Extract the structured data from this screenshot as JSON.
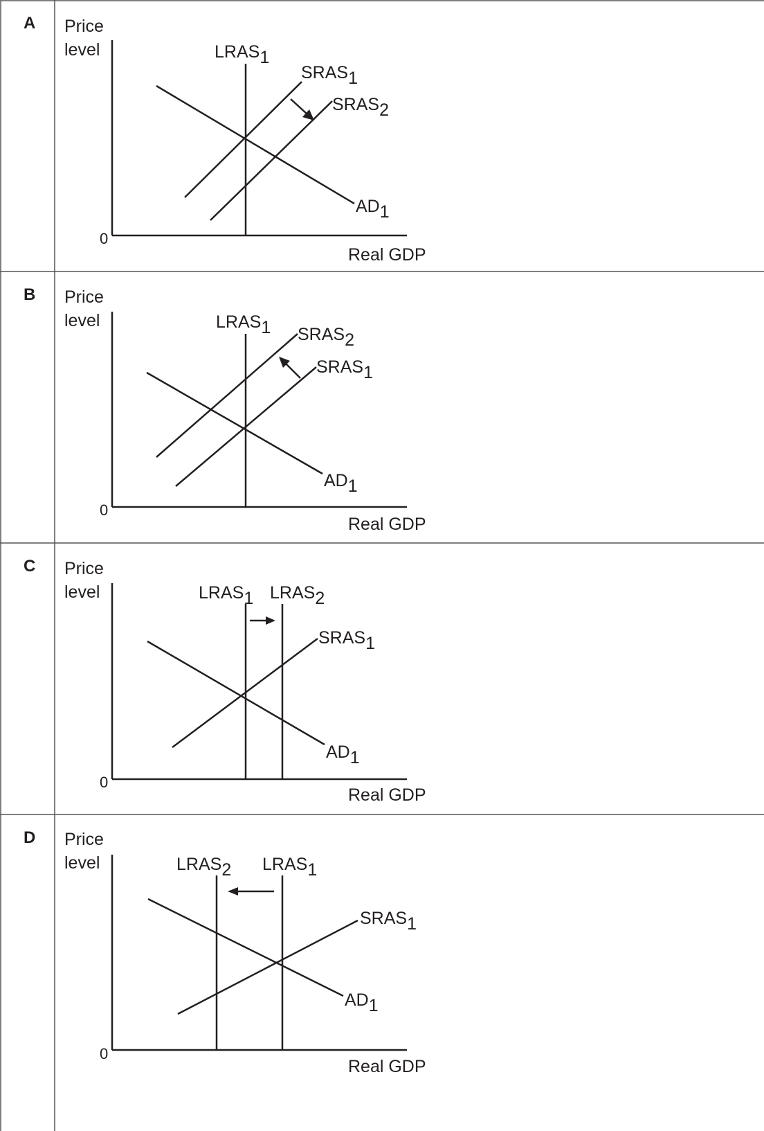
{
  "colors": {
    "ink": "#231f20",
    "border": "#555555",
    "background": "#ffffff"
  },
  "axis_labels": {
    "y_line1": "Price",
    "y_line2": "level",
    "x": "Real GDP",
    "origin": "0"
  },
  "panels": [
    {
      "letter": "A",
      "curves": [
        {
          "key": "lras1",
          "base": "LRAS",
          "sub": "1"
        },
        {
          "key": "sras1",
          "base": "SRAS",
          "sub": "1"
        },
        {
          "key": "sras2",
          "base": "SRAS",
          "sub": "2"
        },
        {
          "key": "ad1",
          "base": "AD",
          "sub": "1"
        }
      ],
      "shift": "SRAS shifts right (SRAS1 to SRAS2)"
    },
    {
      "letter": "B",
      "curves": [
        {
          "key": "lras1",
          "base": "LRAS",
          "sub": "1"
        },
        {
          "key": "sras2",
          "base": "SRAS",
          "sub": "2"
        },
        {
          "key": "sras1",
          "base": "SRAS",
          "sub": "1"
        },
        {
          "key": "ad1",
          "base": "AD",
          "sub": "1"
        }
      ],
      "shift": "SRAS shifts left (SRAS1 to SRAS2)"
    },
    {
      "letter": "C",
      "curves": [
        {
          "key": "lras1",
          "base": "LRAS",
          "sub": "1"
        },
        {
          "key": "lras2",
          "base": "LRAS",
          "sub": "2"
        },
        {
          "key": "sras1",
          "base": "SRAS",
          "sub": "1"
        },
        {
          "key": "ad1",
          "base": "AD",
          "sub": "1"
        }
      ],
      "shift": "LRAS shifts right (LRAS1 to LRAS2)"
    },
    {
      "letter": "D",
      "curves": [
        {
          "key": "lras2",
          "base": "LRAS",
          "sub": "2"
        },
        {
          "key": "lras1",
          "base": "LRAS",
          "sub": "1"
        },
        {
          "key": "sras1",
          "base": "SRAS",
          "sub": "1"
        },
        {
          "key": "ad1",
          "base": "AD",
          "sub": "1"
        }
      ],
      "shift": "LRAS shifts left (LRAS1 to LRAS2)"
    }
  ]
}
